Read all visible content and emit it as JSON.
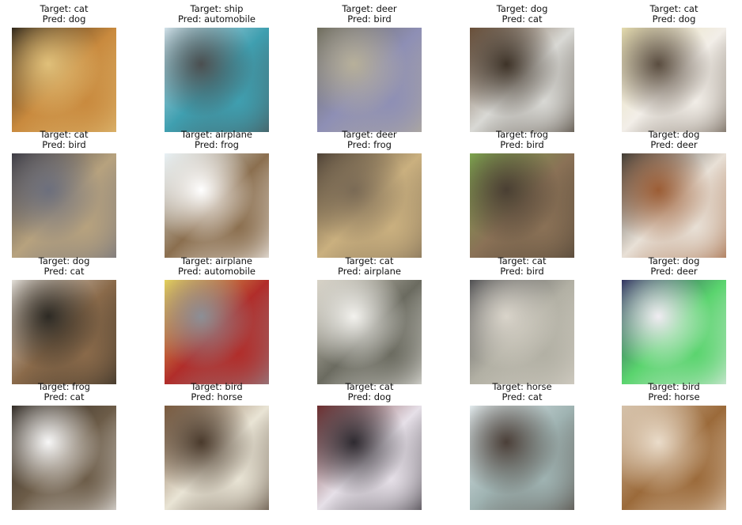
{
  "figure": {
    "target_prefix": "Target: ",
    "pred_prefix": "Pred: ",
    "samples": [
      {
        "target": "cat",
        "pred": "dog",
        "palette": [
          "#2a2218",
          "#c98a3e",
          "#e0c07a"
        ],
        "image_icon": "cat-photo-icon"
      },
      {
        "target": "ship",
        "pred": "automobile",
        "palette": [
          "#d7e6ee",
          "#3f9fb0",
          "#4b4f50"
        ],
        "image_icon": "ship-photo-icon"
      },
      {
        "target": "deer",
        "pred": "bird",
        "palette": [
          "#6c6a59",
          "#8e8fb5",
          "#b7b09a"
        ],
        "image_icon": "deer-photo-icon"
      },
      {
        "target": "dog",
        "pred": "cat",
        "palette": [
          "#6a4f38",
          "#d9d9d5",
          "#3e3328"
        ],
        "image_icon": "dog-photo-icon"
      },
      {
        "target": "cat",
        "pred": "dog",
        "palette": [
          "#e8dfb0",
          "#f2eee8",
          "#5a4d40"
        ],
        "image_icon": "cat-photo-icon"
      },
      {
        "target": "cat",
        "pred": "bird",
        "palette": [
          "#3a3942",
          "#b7a27e",
          "#6c6f7d"
        ],
        "image_icon": "cat-photo-icon"
      },
      {
        "target": "airplane",
        "pred": "frog",
        "palette": [
          "#e7f1f5",
          "#8b6f4f",
          "#ffffff"
        ],
        "image_icon": "airplane-photo-icon"
      },
      {
        "target": "deer",
        "pred": "frog",
        "palette": [
          "#4b3f34",
          "#cab07f",
          "#7a6a55"
        ],
        "image_icon": "deer-photo-icon"
      },
      {
        "target": "frog",
        "pred": "bird",
        "palette": [
          "#7ea84f",
          "#8a7156",
          "#4a3f33"
        ],
        "image_icon": "frog-photo-icon"
      },
      {
        "target": "dog",
        "pred": "deer",
        "palette": [
          "#3d3a34",
          "#e8e0d6",
          "#9c5d35"
        ],
        "image_icon": "dog-photo-icon"
      },
      {
        "target": "dog",
        "pred": "cat",
        "palette": [
          "#e9e5df",
          "#8a6a4a",
          "#2d2a24"
        ],
        "image_icon": "dog-photo-icon"
      },
      {
        "target": "airplane",
        "pred": "automobile",
        "palette": [
          "#e6d55a",
          "#b12d2a",
          "#8c8f96"
        ],
        "image_icon": "airplane-photo-icon"
      },
      {
        "target": "cat",
        "pred": "airplane",
        "palette": [
          "#d7d2c6",
          "#6b6b60",
          "#f3f2ee"
        ],
        "image_icon": "cat-photo-icon"
      },
      {
        "target": "cat",
        "pred": "bird",
        "palette": [
          "#4a4a4d",
          "#b2b0a4",
          "#d9d4ca"
        ],
        "image_icon": "cat-photo-icon"
      },
      {
        "target": "dog",
        "pred": "deer",
        "palette": [
          "#2b2c5c",
          "#5ad46e",
          "#f0ecf2"
        ],
        "image_icon": "dog-photo-icon"
      },
      {
        "target": "frog",
        "pred": "cat",
        "palette": [
          "#2a241e",
          "#6c5c48",
          "#f7f7f7"
        ],
        "image_icon": "frog-photo-icon"
      },
      {
        "target": "bird",
        "pred": "horse",
        "palette": [
          "#7b5a3d",
          "#e9e4d5",
          "#4a3a2c"
        ],
        "image_icon": "bird-photo-icon"
      },
      {
        "target": "cat",
        "pred": "dog",
        "palette": [
          "#6e2c2d",
          "#e6e0e8",
          "#2e2a30"
        ],
        "image_icon": "cat-photo-icon"
      },
      {
        "target": "horse",
        "pred": "cat",
        "palette": [
          "#e7f0f3",
          "#9fb3b2",
          "#4b3f38"
        ],
        "image_icon": "horse-photo-icon"
      },
      {
        "target": "bird",
        "pred": "horse",
        "palette": [
          "#d4c0a8",
          "#9b6a3a",
          "#eadcca"
        ],
        "image_icon": "bird-photo-icon"
      }
    ]
  }
}
